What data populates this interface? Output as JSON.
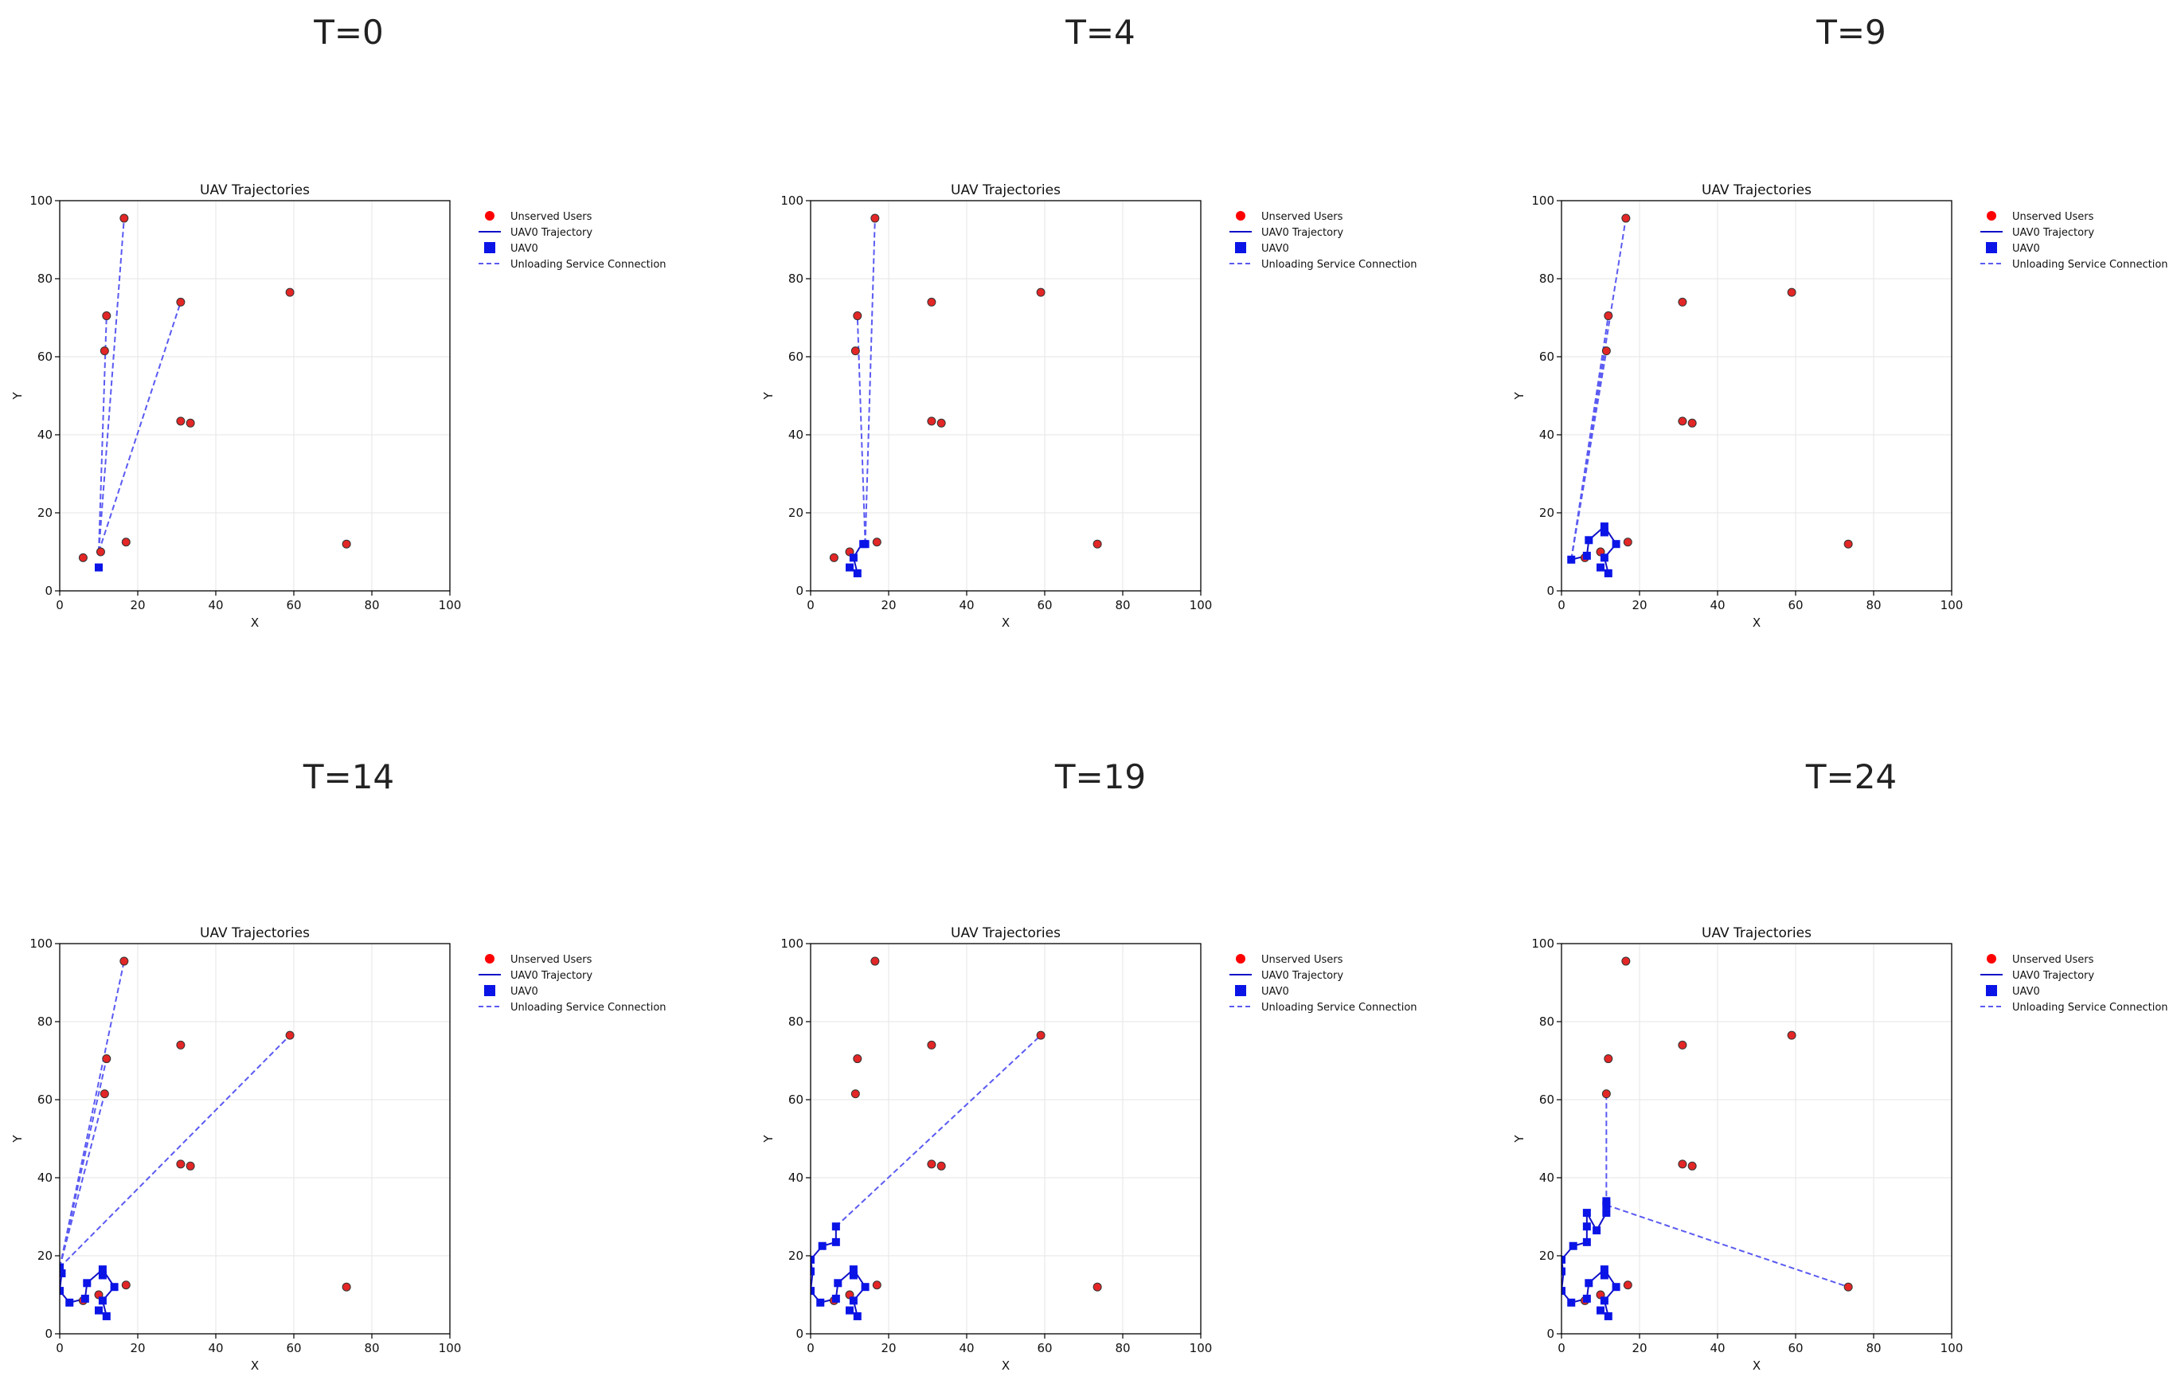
{
  "chart_data": [
    {
      "panel_title": "T=0",
      "type": "scatter",
      "title": "UAV Trajectories",
      "xlabel": "X",
      "ylabel": "Y",
      "xlim": [
        0,
        100
      ],
      "ylim": [
        0,
        100
      ],
      "xticks": [
        0,
        20,
        40,
        60,
        80,
        100
      ],
      "yticks": [
        0,
        20,
        40,
        60,
        80,
        100
      ],
      "grid": true,
      "legend_position": "outside-right",
      "legend": [
        "Unserved Users",
        "UAV0 Trajectory",
        "UAV0",
        "Unloading Service Connection"
      ],
      "users": [
        [
          16.5,
          95.5
        ],
        [
          12,
          70.5
        ],
        [
          11.5,
          61.5
        ],
        [
          31,
          74
        ],
        [
          59,
          76.5
        ],
        [
          31,
          43.5
        ],
        [
          33.5,
          43
        ],
        [
          17,
          12.5
        ],
        [
          6,
          8.5
        ],
        [
          10.5,
          10
        ],
        [
          73.5,
          12
        ]
      ],
      "uav_path": [
        [
          10,
          6
        ]
      ],
      "uav_markers": [
        [
          10,
          6
        ]
      ],
      "connections": [
        [
          [
            10,
            10
          ],
          [
            16.5,
            95.5
          ]
        ],
        [
          [
            10,
            10
          ],
          [
            12,
            70.5
          ]
        ],
        [
          [
            10,
            10
          ],
          [
            31,
            74
          ]
        ]
      ]
    },
    {
      "panel_title": "T=4",
      "type": "scatter",
      "title": "UAV Trajectories",
      "xlabel": "X",
      "ylabel": "Y",
      "xlim": [
        0,
        100
      ],
      "ylim": [
        0,
        100
      ],
      "xticks": [
        0,
        20,
        40,
        60,
        80,
        100
      ],
      "yticks": [
        0,
        20,
        40,
        60,
        80,
        100
      ],
      "grid": true,
      "legend_position": "outside-right",
      "legend": [
        "Unserved Users",
        "UAV0 Trajectory",
        "UAV0",
        "Unloading Service Connection"
      ],
      "users": [
        [
          16.5,
          95.5
        ],
        [
          12,
          70.5
        ],
        [
          11.5,
          61.5
        ],
        [
          31,
          74
        ],
        [
          59,
          76.5
        ],
        [
          31,
          43.5
        ],
        [
          33.5,
          43
        ],
        [
          17,
          12.5
        ],
        [
          6,
          8.5
        ],
        [
          10,
          10
        ],
        [
          73.5,
          12
        ]
      ],
      "uav_path": [
        [
          10,
          6
        ],
        [
          12,
          4.5
        ],
        [
          11,
          8.5
        ],
        [
          12.5,
          11
        ],
        [
          14,
          12
        ]
      ],
      "uav_markers": [
        [
          10,
          6
        ],
        [
          12,
          4.5
        ],
        [
          11,
          8.5
        ],
        [
          13.5,
          12
        ],
        [
          14,
          12
        ]
      ],
      "connections": [
        [
          [
            14,
            12
          ],
          [
            16.5,
            95.5
          ]
        ],
        [
          [
            14,
            12
          ],
          [
            12,
            70.5
          ]
        ]
      ]
    },
    {
      "panel_title": "T=9",
      "type": "scatter",
      "title": "UAV Trajectories",
      "xlabel": "X",
      "ylabel": "Y",
      "xlim": [
        0,
        100
      ],
      "ylim": [
        0,
        100
      ],
      "xticks": [
        0,
        20,
        40,
        60,
        80,
        100
      ],
      "yticks": [
        0,
        20,
        40,
        60,
        80,
        100
      ],
      "grid": true,
      "legend_position": "outside-right",
      "legend": [
        "Unserved Users",
        "UAV0 Trajectory",
        "UAV0",
        "Unloading Service Connection"
      ],
      "users": [
        [
          16.5,
          95.5
        ],
        [
          12,
          70.5
        ],
        [
          11.5,
          61.5
        ],
        [
          31,
          74
        ],
        [
          59,
          76.5
        ],
        [
          31,
          43.5
        ],
        [
          33.5,
          43
        ],
        [
          17,
          12.5
        ],
        [
          6,
          8.5
        ],
        [
          10,
          10
        ],
        [
          73.5,
          12
        ]
      ],
      "uav_path": [
        [
          10,
          6
        ],
        [
          12,
          4.5
        ],
        [
          11,
          8.5
        ],
        [
          14,
          12
        ],
        [
          11,
          16.5
        ],
        [
          7,
          13
        ],
        [
          6.5,
          9
        ],
        [
          2.5,
          8
        ]
      ],
      "uav_markers": [
        [
          10,
          6
        ],
        [
          12,
          4.5
        ],
        [
          11,
          8.5
        ],
        [
          14,
          12
        ],
        [
          11,
          16.5
        ],
        [
          11,
          15
        ],
        [
          7,
          13
        ],
        [
          6.5,
          9
        ],
        [
          2.5,
          8
        ]
      ],
      "connections": [
        [
          [
            2.5,
            8
          ],
          [
            16.5,
            95.5
          ]
        ],
        [
          [
            2.5,
            8
          ],
          [
            12,
            70.5
          ]
        ],
        [
          [
            2.5,
            8
          ],
          [
            11.5,
            61.5
          ]
        ]
      ]
    },
    {
      "panel_title": "T=14",
      "type": "scatter",
      "title": "UAV Trajectories",
      "xlabel": "X",
      "ylabel": "Y",
      "xlim": [
        0,
        100
      ],
      "ylim": [
        0,
        100
      ],
      "xticks": [
        0,
        20,
        40,
        60,
        80,
        100
      ],
      "yticks": [
        0,
        20,
        40,
        60,
        80,
        100
      ],
      "grid": true,
      "legend_position": "outside-right",
      "legend": [
        "Unserved Users",
        "UAV0 Trajectory",
        "UAV0",
        "Unloading Service Connection"
      ],
      "users": [
        [
          16.5,
          95.5
        ],
        [
          12,
          70.5
        ],
        [
          11.5,
          61.5
        ],
        [
          31,
          74
        ],
        [
          59,
          76.5
        ],
        [
          31,
          43.5
        ],
        [
          33.5,
          43
        ],
        [
          17,
          12.5
        ],
        [
          6,
          8.5
        ],
        [
          10,
          10
        ],
        [
          73.5,
          12
        ]
      ],
      "uav_path": [
        [
          10,
          6
        ],
        [
          12,
          4.5
        ],
        [
          11,
          8.5
        ],
        [
          14,
          12
        ],
        [
          11,
          16.5
        ],
        [
          7,
          13
        ],
        [
          6.5,
          9
        ],
        [
          2.5,
          8
        ],
        [
          0,
          11
        ],
        [
          0.5,
          15.5
        ],
        [
          0,
          17
        ]
      ],
      "uav_markers": [
        [
          10,
          6
        ],
        [
          12,
          4.5
        ],
        [
          11,
          8.5
        ],
        [
          14,
          12
        ],
        [
          11,
          16.5
        ],
        [
          11,
          15
        ],
        [
          7,
          13
        ],
        [
          6.5,
          9
        ],
        [
          2.5,
          8
        ],
        [
          0,
          11
        ],
        [
          0.5,
          15.5
        ],
        [
          0,
          17
        ]
      ],
      "connections": [
        [
          [
            0,
            17
          ],
          [
            16.5,
            95.5
          ]
        ],
        [
          [
            0,
            17
          ],
          [
            12,
            70.5
          ]
        ],
        [
          [
            0,
            17
          ],
          [
            11.5,
            61.5
          ]
        ],
        [
          [
            0,
            17
          ],
          [
            59,
            76.5
          ]
        ]
      ]
    },
    {
      "panel_title": "T=19",
      "type": "scatter",
      "title": "UAV Trajectories",
      "xlabel": "X",
      "ylabel": "Y",
      "xlim": [
        0,
        100
      ],
      "ylim": [
        0,
        100
      ],
      "xticks": [
        0,
        20,
        40,
        60,
        80,
        100
      ],
      "yticks": [
        0,
        20,
        40,
        60,
        80,
        100
      ],
      "grid": true,
      "legend_position": "outside-right",
      "legend": [
        "Unserved Users",
        "UAV0 Trajectory",
        "UAV0",
        "Unloading Service Connection"
      ],
      "users": [
        [
          16.5,
          95.5
        ],
        [
          12,
          70.5
        ],
        [
          11.5,
          61.5
        ],
        [
          31,
          74
        ],
        [
          59,
          76.5
        ],
        [
          31,
          43.5
        ],
        [
          33.5,
          43
        ],
        [
          17,
          12.5
        ],
        [
          6,
          8.5
        ],
        [
          10,
          10
        ],
        [
          73.5,
          12
        ]
      ],
      "uav_path": [
        [
          10,
          6
        ],
        [
          12,
          4.5
        ],
        [
          11,
          8.5
        ],
        [
          14,
          12
        ],
        [
          11,
          16.5
        ],
        [
          7,
          13
        ],
        [
          6.5,
          9
        ],
        [
          2.5,
          8
        ],
        [
          0,
          11
        ],
        [
          0.5,
          15.5
        ],
        [
          0,
          19
        ],
        [
          3,
          22.5
        ],
        [
          6.5,
          23.5
        ],
        [
          6.5,
          27.5
        ]
      ],
      "uav_markers": [
        [
          10,
          6
        ],
        [
          12,
          4.5
        ],
        [
          11,
          8.5
        ],
        [
          14,
          12
        ],
        [
          11,
          16.5
        ],
        [
          11,
          15
        ],
        [
          7,
          13
        ],
        [
          6.5,
          9
        ],
        [
          2.5,
          8
        ],
        [
          0,
          11
        ],
        [
          0,
          16
        ],
        [
          0,
          19
        ],
        [
          3,
          22.5
        ],
        [
          6.5,
          23.5
        ],
        [
          6.5,
          27.5
        ]
      ],
      "connections": [
        [
          [
            6.5,
            27.5
          ],
          [
            59,
            76.5
          ]
        ]
      ]
    },
    {
      "panel_title": "T=24",
      "type": "scatter",
      "title": "UAV Trajectories",
      "xlabel": "X",
      "ylabel": "Y",
      "xlim": [
        0,
        100
      ],
      "ylim": [
        0,
        100
      ],
      "xticks": [
        0,
        20,
        40,
        60,
        80,
        100
      ],
      "yticks": [
        0,
        20,
        40,
        60,
        80,
        100
      ],
      "grid": true,
      "legend_position": "outside-right",
      "legend": [
        "Unserved Users",
        "UAV0 Trajectory",
        "UAV0",
        "Unloading Service Connection"
      ],
      "users": [
        [
          16.5,
          95.5
        ],
        [
          12,
          70.5
        ],
        [
          11.5,
          61.5
        ],
        [
          31,
          74
        ],
        [
          59,
          76.5
        ],
        [
          31,
          43.5
        ],
        [
          33.5,
          43
        ],
        [
          17,
          12.5
        ],
        [
          6,
          8.5
        ],
        [
          10,
          10
        ],
        [
          73.5,
          12
        ]
      ],
      "uav_path": [
        [
          10,
          6
        ],
        [
          12,
          4.5
        ],
        [
          11,
          8.5
        ],
        [
          14,
          12
        ],
        [
          11,
          16.5
        ],
        [
          7,
          13
        ],
        [
          6.5,
          9
        ],
        [
          2.5,
          8
        ],
        [
          0,
          11
        ],
        [
          0.5,
          15.5
        ],
        [
          0,
          19
        ],
        [
          3,
          22.5
        ],
        [
          6.5,
          23.5
        ],
        [
          6.5,
          27.5
        ],
        [
          6.5,
          31
        ],
        [
          9,
          26.5
        ],
        [
          11.5,
          31
        ],
        [
          11.5,
          34
        ]
      ],
      "uav_markers": [
        [
          10,
          6
        ],
        [
          12,
          4.5
        ],
        [
          11,
          8.5
        ],
        [
          14,
          12
        ],
        [
          11,
          16.5
        ],
        [
          11,
          15
        ],
        [
          7,
          13
        ],
        [
          6.5,
          9
        ],
        [
          2.5,
          8
        ],
        [
          0,
          11
        ],
        [
          0,
          16
        ],
        [
          0,
          19
        ],
        [
          3,
          22.5
        ],
        [
          6.5,
          23.5
        ],
        [
          6.5,
          27.5
        ],
        [
          6.5,
          31
        ],
        [
          9,
          26.5
        ],
        [
          11.5,
          31
        ],
        [
          11.5,
          33
        ],
        [
          11.5,
          34
        ]
      ],
      "connections": [
        [
          [
            11.5,
            33
          ],
          [
            11.5,
            61.5
          ]
        ],
        [
          [
            11.5,
            33
          ],
          [
            73.5,
            12
          ]
        ]
      ]
    }
  ]
}
